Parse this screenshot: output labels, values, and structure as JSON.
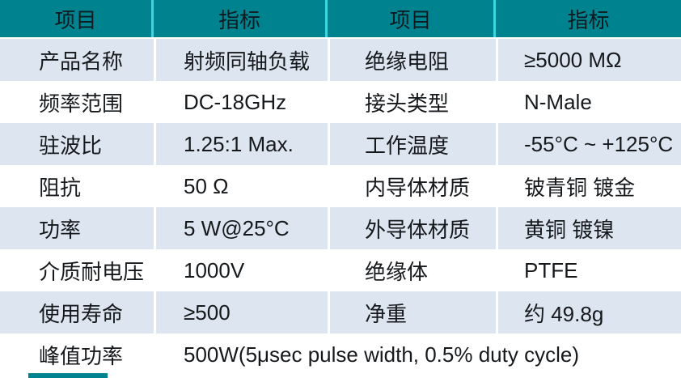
{
  "table": {
    "headers": [
      "项目",
      "指标",
      "项目",
      "指标"
    ],
    "rows": [
      {
        "cells": [
          "产品名称",
          "射频同轴负载",
          "绝缘电阻",
          "≥5000 MΩ"
        ]
      },
      {
        "cells": [
          "频率范围",
          "DC-18GHz",
          "接头类型",
          "N-Male"
        ]
      },
      {
        "cells": [
          "驻波比",
          "1.25:1 Max.",
          "工作温度",
          "-55°C ~ +125°C"
        ]
      },
      {
        "cells": [
          "阻抗",
          "50 Ω",
          "内导体材质",
          "铍青铜 镀金"
        ]
      },
      {
        "cells": [
          "功率",
          "5 W@25°C",
          "外导体材质",
          "黄铜 镀镍"
        ]
      },
      {
        "cells": [
          "介质耐电压",
          "1000V",
          "绝缘体",
          "PTFE"
        ]
      },
      {
        "cells": [
          "使用寿命",
          "≥500",
          "净重",
          "约 49.8g"
        ]
      }
    ],
    "peak_power_row": {
      "label": "峰值功率",
      "value": "500W(5μsec pulse width, 0.5% duty cycle)"
    }
  },
  "colors": {
    "teal": "#00838F",
    "cyan": "#3BD6E4",
    "row_shade": "#DCE5F0",
    "row_plain": "#FFFFFF",
    "text": "#16191C",
    "header_text": "#0C1B20"
  }
}
